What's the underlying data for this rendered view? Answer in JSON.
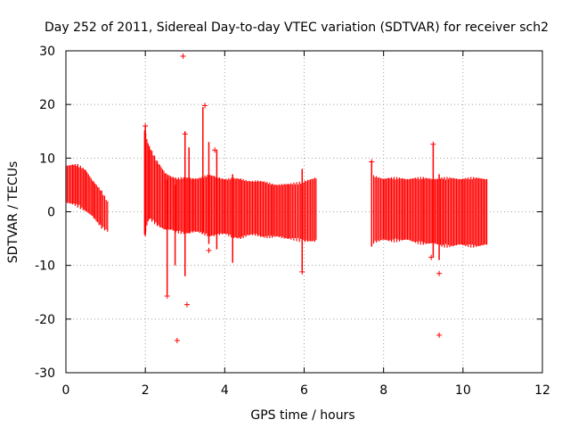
{
  "chart_data": {
    "type": "scatter",
    "title": "Day 252 of 2011, Sidereal Day-to-day VTEC variation (SDTVAR) for receiver sch2",
    "xlabel": "GPS time / hours",
    "ylabel": "SDTVAR / TECUs",
    "xlim": [
      0,
      12
    ],
    "ylim": [
      -30,
      30
    ],
    "x_ticks": [
      0,
      2,
      4,
      6,
      8,
      10,
      12
    ],
    "x_tick_labels": [
      "0",
      "2",
      "4",
      "6",
      "8",
      "10",
      "12"
    ],
    "y_ticks": [
      -30,
      -20,
      -10,
      0,
      10,
      20,
      30
    ],
    "y_tick_labels": [
      "-30",
      "-20",
      "-10",
      "0",
      "10",
      "20",
      "30"
    ],
    "grid": true,
    "legend": "none",
    "marker": "+",
    "series_color": "#ff0000",
    "dense_bands": [
      {
        "x": 0.0,
        "lo": 1.8,
        "hi": 8.5
      },
      {
        "x": 0.2,
        "lo": 1.8,
        "hi": 8.5
      },
      {
        "x": 0.3,
        "lo": 1.5,
        "hi": 8.4
      },
      {
        "x": 0.5,
        "lo": 0.5,
        "hi": 7.5
      },
      {
        "x": 0.7,
        "lo": -1.0,
        "hi": 5.5
      },
      {
        "x": 0.9,
        "lo": -2.5,
        "hi": 3.5
      },
      {
        "x": 1.05,
        "lo": -3.5,
        "hi": 1.8
      },
      {
        "x": 1.98,
        "lo": -4.0,
        "hi": 15.0
      },
      {
        "x": 2.1,
        "lo": -1.0,
        "hi": 12.0
      },
      {
        "x": 2.3,
        "lo": -2.0,
        "hi": 9.0
      },
      {
        "x": 2.5,
        "lo": -3.0,
        "hi": 7.0
      },
      {
        "x": 2.8,
        "lo": -3.5,
        "hi": 6.0
      },
      {
        "x": 3.2,
        "lo": -3.5,
        "hi": 6.0
      },
      {
        "x": 3.6,
        "lo": -4.0,
        "hi": 6.5
      },
      {
        "x": 4.0,
        "lo": -4.0,
        "hi": 6.0
      },
      {
        "x": 4.4,
        "lo": -4.5,
        "hi": 5.8
      },
      {
        "x": 4.8,
        "lo": -4.0,
        "hi": 5.5
      },
      {
        "x": 5.2,
        "lo": -4.5,
        "hi": 5.0
      },
      {
        "x": 5.6,
        "lo": -4.5,
        "hi": 4.8
      },
      {
        "x": 5.95,
        "lo": -5.0,
        "hi": 5.2
      },
      {
        "x": 6.3,
        "lo": -5.0,
        "hi": 6.0
      },
      {
        "x": 7.75,
        "lo": -5.5,
        "hi": 6.5
      },
      {
        "x": 8.0,
        "lo": -5.0,
        "hi": 6.0
      },
      {
        "x": 8.5,
        "lo": -5.0,
        "hi": 6.0
      },
      {
        "x": 9.0,
        "lo": -5.5,
        "hi": 6.0
      },
      {
        "x": 9.5,
        "lo": -6.0,
        "hi": 6.0
      },
      {
        "x": 10.0,
        "lo": -6.0,
        "hi": 6.0
      },
      {
        "x": 10.6,
        "lo": -6.0,
        "hi": 6.0
      }
    ],
    "spikes": [
      {
        "x": 2.0,
        "lo": -4.5,
        "hi": 16.0
      },
      {
        "x": 2.55,
        "lo": -15.5,
        "hi": 6.0
      },
      {
        "x": 2.75,
        "lo": -10.0,
        "hi": 5.0
      },
      {
        "x": 3.0,
        "lo": -12.0,
        "hi": 15.0
      },
      {
        "x": 3.1,
        "lo": -4.0,
        "hi": 12.0
      },
      {
        "x": 3.45,
        "lo": -4.0,
        "hi": 19.5
      },
      {
        "x": 3.6,
        "lo": -6.0,
        "hi": 13.0
      },
      {
        "x": 3.8,
        "lo": -7.0,
        "hi": 11.5
      },
      {
        "x": 4.2,
        "lo": -9.5,
        "hi": 7.0
      },
      {
        "x": 5.95,
        "lo": -11.0,
        "hi": 8.0
      },
      {
        "x": 7.7,
        "lo": -6.5,
        "hi": 9.5
      },
      {
        "x": 9.25,
        "lo": -8.5,
        "hi": 12.5
      },
      {
        "x": 9.4,
        "lo": -9.0,
        "hi": 7.0
      }
    ],
    "outliers": [
      {
        "x": 2.95,
        "y": 29.0
      },
      {
        "x": 2.8,
        "y": -24.0
      },
      {
        "x": 3.05,
        "y": -17.3
      },
      {
        "x": 2.55,
        "y": -15.7
      },
      {
        "x": 3.5,
        "y": 19.8
      },
      {
        "x": 3.75,
        "y": 11.5
      },
      {
        "x": 3.6,
        "y": -7.2
      },
      {
        "x": 9.4,
        "y": -23.0
      },
      {
        "x": 9.4,
        "y": -11.5
      },
      {
        "x": 9.2,
        "y": -8.5
      },
      {
        "x": 5.95,
        "y": -11.2
      },
      {
        "x": 7.7,
        "y": 9.3
      },
      {
        "x": 9.25,
        "y": 12.6
      },
      {
        "x": 2.0,
        "y": 16.0
      },
      {
        "x": 3.0,
        "y": 14.5
      }
    ]
  }
}
